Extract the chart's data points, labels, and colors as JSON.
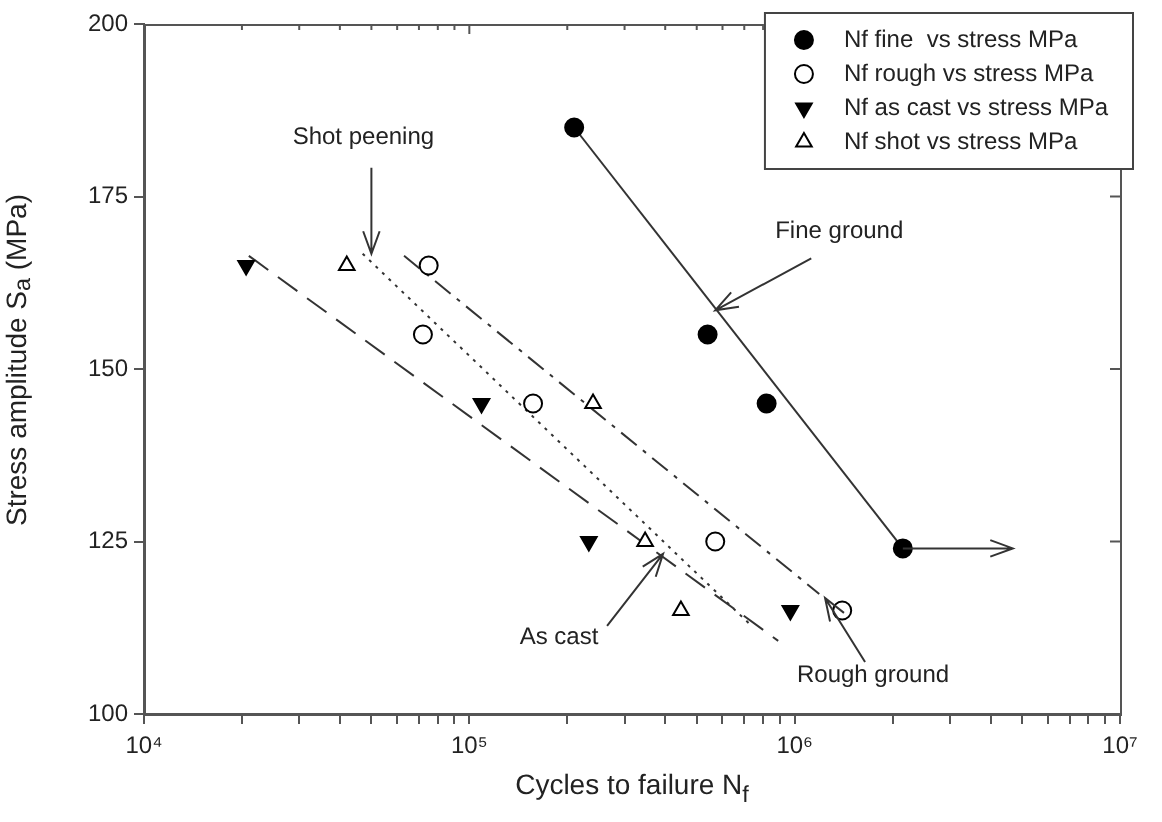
{
  "chart_data": {
    "type": "scatter",
    "xlabel": "Cycles to failure N$_{f}$",
    "ylabel": "Stress amplitude S$_{a}$ (MPa)",
    "log": "x",
    "grid": false,
    "legend": "top right",
    "xlim": [
      10000,
      10000000
    ],
    "xticks": [
      {
        "value": 10000,
        "label": "10⁴"
      },
      {
        "value": 20000,
        "label": null
      },
      {
        "value": 30000,
        "label": null
      },
      {
        "value": 40000,
        "label": null
      },
      {
        "value": 50000,
        "label": null
      },
      {
        "value": 60000,
        "label": null
      },
      {
        "value": 70000,
        "label": null
      },
      {
        "value": 80000,
        "label": null
      },
      {
        "value": 90000,
        "label": null
      },
      {
        "value": 100000,
        "label": "10⁵"
      },
      {
        "value": 200000,
        "label": null
      },
      {
        "value": 300000,
        "label": null
      },
      {
        "value": 400000,
        "label": null
      },
      {
        "value": 500000,
        "label": null
      },
      {
        "value": 600000,
        "label": null
      },
      {
        "value": 700000,
        "label": null
      },
      {
        "value": 800000,
        "label": null
      },
      {
        "value": 900000,
        "label": null
      },
      {
        "value": 1000000,
        "label": "10⁶"
      },
      {
        "value": 2000000,
        "label": null
      },
      {
        "value": 3000000,
        "label": null
      },
      {
        "value": 4000000,
        "label": null
      },
      {
        "value": 5000000,
        "label": null
      },
      {
        "value": 6000000,
        "label": null
      },
      {
        "value": 7000000,
        "label": null
      },
      {
        "value": 8000000,
        "label": null
      },
      {
        "value": 9000000,
        "label": null
      },
      {
        "value": 10000000,
        "label": "10⁷"
      }
    ],
    "ylim": [
      100,
      200
    ],
    "yticks": [
      100,
      125,
      150,
      175,
      200
    ],
    "series": [
      {
        "name": "Nf fine  vs stress MPa",
        "marker": "circle",
        "color": "#000000",
        "x": [
          210000,
          540000,
          820000,
          2150000
        ],
        "values": [
          185,
          155,
          145,
          124
        ]
      },
      {
        "name": "Nf rough vs stress MPa",
        "marker": "circle-open",
        "color": "#000000",
        "x": [
          75000,
          72000,
          157000,
          570000,
          1400000
        ],
        "values": [
          165,
          155,
          145,
          125,
          115
        ]
      },
      {
        "name": "Nf as cast vs stress MPa",
        "marker": "triangle-down",
        "color": "#000000",
        "x": [
          20600,
          109000,
          233000,
          970000
        ],
        "values": [
          165,
          145,
          125,
          115
        ]
      },
      {
        "name": "Nf shot vs stress MPa",
        "marker": "triangle-open",
        "color": "#000000",
        "x": [
          42000,
          240000,
          347000,
          447000
        ],
        "values": [
          165,
          145,
          125,
          115
        ]
      },
      {
        "type": "line",
        "line_style": "solid",
        "color": "#333333",
        "x": [
          210000,
          2150000
        ],
        "values": [
          185,
          124
        ]
      },
      {
        "type": "line",
        "line_style": "dashed",
        "color": "#333333",
        "x": [
          21000,
          890000
        ],
        "values": [
          166.4,
          110.6
        ]
      },
      {
        "type": "line",
        "line_style": "dotted",
        "color": "#333333",
        "x": [
          47000,
          740000
        ],
        "values": [
          166.7,
          112.7
        ]
      },
      {
        "type": "line",
        "line_style": "dashdot",
        "color": "#333333",
        "x": [
          63000,
          1190000
        ],
        "values": [
          166.4,
          117.4
        ]
      }
    ],
    "annotations": [
      {
        "text": "Shot peening",
        "x": 50000,
        "y": 166.7
      },
      {
        "text": "Fine ground",
        "x": 570000,
        "y": 158.5
      },
      {
        "text": "As cast",
        "x": 394000,
        "y": 123.2
      },
      {
        "text": "Rough ground",
        "x": 1240000,
        "y": 116.8
      }
    ]
  }
}
